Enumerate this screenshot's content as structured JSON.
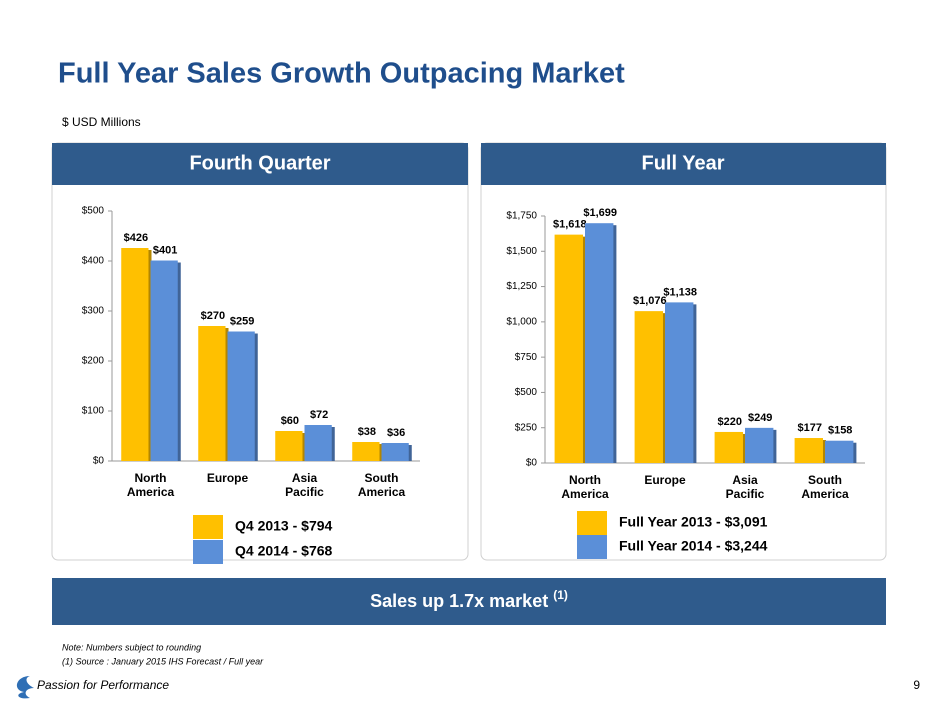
{
  "title": "Full Year Sales Growth Outpacing Market",
  "subtitle": "$ USD Millions",
  "chart_data": [
    {
      "type": "bar",
      "title": "Fourth Quarter",
      "categories": [
        "North America",
        "Europe",
        "Asia Pacific",
        "South America"
      ],
      "series": [
        {
          "name": "Q4 2013 - $794",
          "color": "#ffc000",
          "values": [
            426,
            270,
            60,
            38
          ],
          "value_labels": [
            "$426",
            "$270",
            "$60",
            "$38"
          ]
        },
        {
          "name": "Q4 2014 - $768",
          "color": "#5b8fd8",
          "values": [
            401,
            259,
            72,
            36
          ],
          "value_labels": [
            "$401",
            "$259",
            "$72",
            "$36"
          ]
        }
      ],
      "ylim": [
        0,
        500
      ],
      "yticks": [
        {
          "value": 0,
          "label": "$0"
        },
        {
          "value": 100,
          "label": "$100"
        },
        {
          "value": 200,
          "label": "$200"
        },
        {
          "value": 300,
          "label": "$300"
        },
        {
          "value": 400,
          "label": "$400"
        },
        {
          "value": 500,
          "label": "$500"
        }
      ]
    },
    {
      "type": "bar",
      "title": "Full Year",
      "categories": [
        "North America",
        "Europe",
        "Asia Pacific",
        "South America"
      ],
      "series": [
        {
          "name": "Full Year 2013 - $3,091",
          "color": "#ffc000",
          "values": [
            1618,
            1076,
            220,
            177
          ],
          "value_labels": [
            "$1,618",
            "$1,076",
            "$220",
            "$177"
          ]
        },
        {
          "name": "Full Year 2014 - $3,244",
          "color": "#5b8fd8",
          "values": [
            1699,
            1138,
            249,
            158
          ],
          "value_labels": [
            "$1,699",
            "$1,138",
            "$249",
            "$158"
          ]
        }
      ],
      "ylim": [
        0,
        1750
      ],
      "yticks": [
        {
          "value": 0,
          "label": "$0"
        },
        {
          "value": 250,
          "label": "$250"
        },
        {
          "value": 500,
          "label": "$500"
        },
        {
          "value": 750,
          "label": "$750"
        },
        {
          "value": 1000,
          "label": "$1,000"
        },
        {
          "value": 1250,
          "label": "$1,250"
        },
        {
          "value": 1500,
          "label": "$1,500"
        },
        {
          "value": 1750,
          "label": "$1,750"
        }
      ]
    }
  ],
  "banner": {
    "text": "Sales up 1.7x market",
    "superscript": "(1)"
  },
  "notes": [
    "Note: Numbers subject to rounding",
    "(1) Source : January 2015 IHS Forecast / Full year"
  ],
  "footer": {
    "tagline": "Passion for Performance",
    "page": "9"
  }
}
